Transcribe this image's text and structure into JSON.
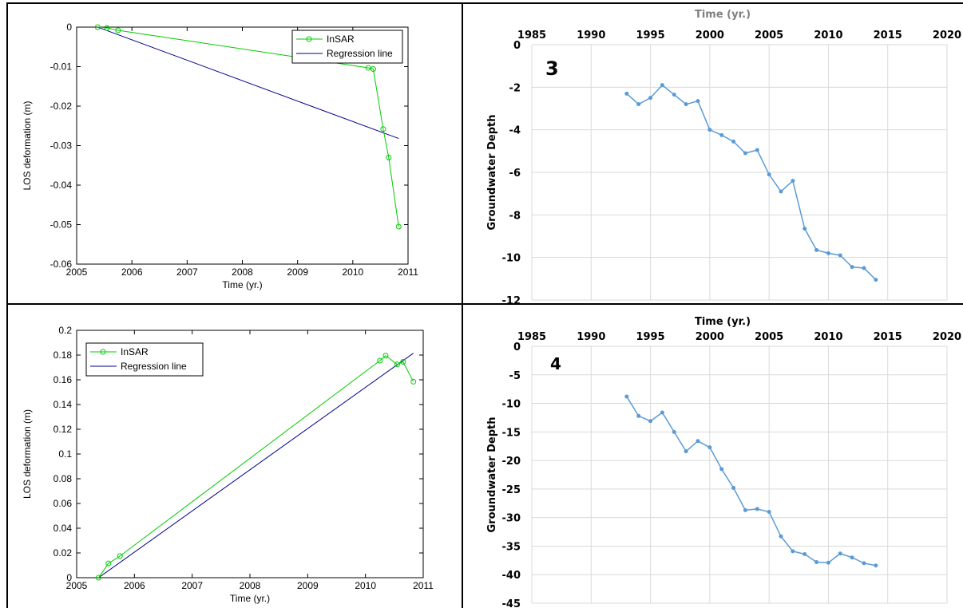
{
  "chart_data": [
    {
      "type": "line",
      "xlabel": "Time (yr.)",
      "ylabel": "LOS deformation (m)",
      "xlim": [
        2005,
        2011
      ],
      "ylim": [
        -0.06,
        0
      ],
      "x_ticks": [
        2005,
        2006,
        2007,
        2008,
        2009,
        2010,
        2011
      ],
      "y_ticks": [
        0,
        -0.01,
        -0.02,
        -0.03,
        -0.04,
        -0.05,
        -0.06
      ],
      "y_tick_labels": [
        "0",
        "-0.01",
        "-0.02",
        "-0.03",
        "-0.04",
        "-0.05",
        "-0.06"
      ],
      "grid": false,
      "legend_position": "top-right",
      "series": [
        {
          "name": "InSAR",
          "color": "#00cc00",
          "marker": "circle",
          "x": [
            2005.38,
            2005.55,
            2005.75,
            2010.28,
            2010.37,
            2010.55,
            2010.65,
            2010.83
          ],
          "y": [
            0,
            -0.0002,
            -0.0008,
            -0.0103,
            -0.0106,
            -0.0258,
            -0.033,
            -0.0505
          ]
        },
        {
          "name": "Regression line",
          "color": "#00008b",
          "x": [
            2005.38,
            2010.83
          ],
          "y": [
            0,
            -0.0282
          ]
        }
      ]
    },
    {
      "type": "line",
      "title": "Time (yr.)",
      "ylabel": "Groundwater Depth",
      "panel_label": "3",
      "xlim": [
        1985,
        2020
      ],
      "ylim": [
        -12,
        0
      ],
      "x_ticks": [
        1985,
        1990,
        1995,
        2000,
        2005,
        2010,
        2015,
        2020
      ],
      "y_ticks": [
        0,
        -2,
        -4,
        -6,
        -8,
        -10,
        -12
      ],
      "x_axis_position": "top",
      "grid": true,
      "series": [
        {
          "color": "#5b9bd5",
          "x": [
            1993,
            1994,
            1995,
            1996,
            1997,
            1998,
            1999,
            2000,
            2001,
            2002,
            2003,
            2004,
            2005,
            2006,
            2007,
            2008,
            2009,
            2010,
            2011,
            2012,
            2013,
            2014
          ],
          "y": [
            -2.3,
            -2.8,
            -2.5,
            -1.9,
            -2.35,
            -2.8,
            -2.65,
            -4.0,
            -4.25,
            -4.55,
            -5.1,
            -4.95,
            -6.1,
            -6.9,
            -6.4,
            -8.65,
            -9.65,
            -9.8,
            -9.9,
            -10.45,
            -10.5,
            -11.05
          ]
        }
      ]
    },
    {
      "type": "line",
      "xlabel": "Time (yr.)",
      "ylabel": "LOS deformation (m)",
      "xlim": [
        2005,
        2011
      ],
      "ylim": [
        0,
        0.2
      ],
      "x_ticks": [
        2005,
        2006,
        2007,
        2008,
        2009,
        2010,
        2011
      ],
      "y_ticks": [
        0,
        0.02,
        0.04,
        0.06,
        0.08,
        0.1,
        0.12,
        0.14,
        0.16,
        0.18,
        0.2
      ],
      "y_tick_labels": [
        "0",
        "0.02",
        "0.04",
        "0.06",
        "0.08",
        "0.1",
        "0.12",
        "0.14",
        "0.16",
        "0.18",
        "0.2"
      ],
      "grid": false,
      "legend_position": "top-left",
      "series": [
        {
          "name": "InSAR",
          "color": "#00cc00",
          "marker": "circle",
          "x": [
            2005.38,
            2005.55,
            2005.75,
            2010.25,
            2010.35,
            2010.55,
            2010.65,
            2010.83
          ],
          "y": [
            0,
            0.0115,
            0.0175,
            0.1755,
            0.1795,
            0.1725,
            0.1745,
            0.1585
          ]
        },
        {
          "name": "Regression line",
          "color": "#00008b",
          "x": [
            2005.38,
            2010.83
          ],
          "y": [
            0,
            0.1815
          ]
        }
      ]
    },
    {
      "type": "line",
      "title": "Time (yr.)",
      "ylabel": "Groundwater Depth",
      "panel_label": "4",
      "xlim": [
        1985,
        2020
      ],
      "ylim": [
        -45,
        0
      ],
      "x_ticks": [
        1985,
        1990,
        1995,
        2000,
        2005,
        2010,
        2015,
        2020
      ],
      "y_ticks": [
        0,
        -5,
        -10,
        -15,
        -20,
        -25,
        -30,
        -35,
        -40,
        -45
      ],
      "x_axis_position": "top",
      "grid": true,
      "series": [
        {
          "color": "#5b9bd5",
          "x": [
            1993,
            1994,
            1995,
            1996,
            1997,
            1998,
            1999,
            2000,
            2001,
            2002,
            2003,
            2004,
            2005,
            2006,
            2007,
            2008,
            2009,
            2010,
            2011,
            2012,
            2013,
            2014
          ],
          "y": [
            -8.8,
            -12.2,
            -13.1,
            -11.6,
            -15.0,
            -18.4,
            -16.6,
            -17.7,
            -21.5,
            -24.8,
            -28.7,
            -28.5,
            -29.0,
            -33.3,
            -35.9,
            -36.4,
            -37.8,
            -37.9,
            -36.3,
            -37.0,
            -38.0,
            -38.4
          ]
        }
      ]
    }
  ]
}
